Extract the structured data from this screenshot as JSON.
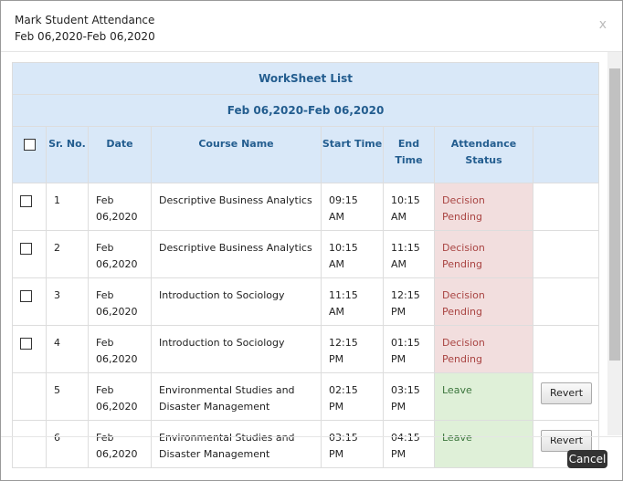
{
  "dialog": {
    "title": "Mark Student Attendance",
    "subtitle": "Feb 06,2020-Feb 06,2020",
    "close": "x",
    "cancel": "Cancel"
  },
  "table": {
    "caption": "WorkSheet List",
    "range": "Feb 06,2020-Feb 06,2020",
    "headers": [
      "Sr. No.",
      "Date",
      "Course Name",
      "Start Time",
      "End Time",
      "Attendance Status"
    ],
    "rows": [
      {
        "sr": "1",
        "date": "Feb 06,2020",
        "course": "Descriptive Business Analytics",
        "start": "09:15 AM",
        "end": "10:15 AM",
        "status": "Decision Pending"
      },
      {
        "sr": "2",
        "date": "Feb 06,2020",
        "course": "Descriptive Business Analytics",
        "start": "10:15 AM",
        "end": "11:15 AM",
        "status": "Decision Pending"
      },
      {
        "sr": "3",
        "date": "Feb 06,2020",
        "course": "Introduction to Sociology",
        "start": "11:15 AM",
        "end": "12:15 PM",
        "status": "Decision Pending"
      },
      {
        "sr": "4",
        "date": "Feb 06,2020",
        "course": "Introduction to Sociology",
        "start": "12:15 PM",
        "end": "01:15 PM",
        "status": "Decision Pending"
      },
      {
        "sr": "5",
        "date": "Feb 06,2020",
        "course": "Environmental Studies and Disaster Management",
        "start": "02:15 PM",
        "end": "03:15 PM",
        "status": "Leave",
        "action": "Revert"
      },
      {
        "sr": "6",
        "date": "Feb 06,2020",
        "course": "Environmental Studies and Disaster Management",
        "start": "03:15 PM",
        "end": "04:15 PM",
        "status": "Leave",
        "action": "Revert"
      }
    ]
  }
}
